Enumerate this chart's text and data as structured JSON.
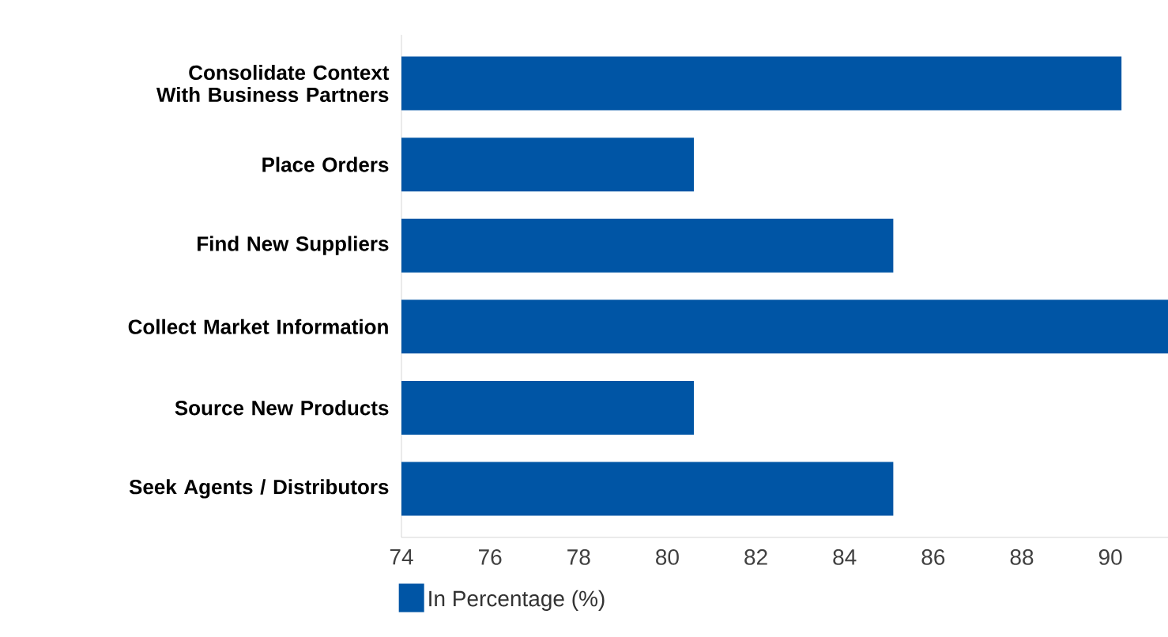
{
  "chart_data": {
    "type": "bar",
    "orientation": "horizontal",
    "categories": [
      "Consolidate Context With Business Partners",
      "Place Orders",
      "Find New Suppliers",
      "Collect Market Information",
      "Source New Products",
      "Seek Agents / Distributors"
    ],
    "series": [
      {
        "name": "In Percentage (%)",
        "color": "#0055a5",
        "values": [
          90.25,
          80.6,
          85.1,
          91.3,
          80.6,
          85.1
        ]
      }
    ],
    "xlim": [
      74,
      91.3
    ],
    "xticks": [
      74,
      76,
      78,
      80,
      82,
      84,
      86,
      88,
      90
    ],
    "legend": "bottom left",
    "grid": false
  }
}
